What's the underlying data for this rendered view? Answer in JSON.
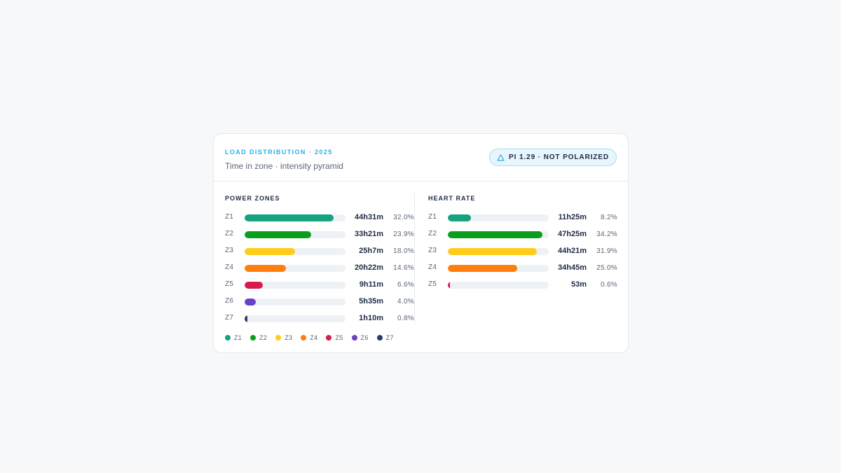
{
  "header": {
    "eyebrow": "LOAD DISTRIBUTION · 2025",
    "subtitle": "Time in zone · intensity pyramid",
    "badge": {
      "label": "PI 1.29 · NOT POLARIZED",
      "icon": "warning-triangle-icon",
      "color": "#2bb0e6"
    }
  },
  "colors": {
    "Z1": "#14a37f",
    "Z2": "#0b9e1d",
    "Z3": "#ffcc1a",
    "Z4": "#ff7f0e",
    "Z5": "#d81b4c",
    "Z6": "#6a3fc9",
    "Z7": "#2f3a66"
  },
  "power": {
    "title": "POWER ZONES",
    "rows": [
      {
        "zone": "Z1",
        "duration": "44h31m",
        "percent": "32.0%",
        "fill": 0.88
      },
      {
        "zone": "Z2",
        "duration": "33h21m",
        "percent": "23.9%",
        "fill": 0.66
      },
      {
        "zone": "Z3",
        "duration": "25h7m",
        "percent": "18.0%",
        "fill": 0.5
      },
      {
        "zone": "Z4",
        "duration": "20h22m",
        "percent": "14.6%",
        "fill": 0.41
      },
      {
        "zone": "Z5",
        "duration": "9h11m",
        "percent": "6.6%",
        "fill": 0.18
      },
      {
        "zone": "Z6",
        "duration": "5h35m",
        "percent": "4.0%",
        "fill": 0.11
      },
      {
        "zone": "Z7",
        "duration": "1h10m",
        "percent": "0.8%",
        "fill": 0.03
      }
    ]
  },
  "heart_rate": {
    "title": "HEART RATE",
    "rows": [
      {
        "zone": "Z1",
        "duration": "11h25m",
        "percent": "8.2%",
        "fill": 0.23
      },
      {
        "zone": "Z2",
        "duration": "47h25m",
        "percent": "34.2%",
        "fill": 0.94
      },
      {
        "zone": "Z3",
        "duration": "44h21m",
        "percent": "31.9%",
        "fill": 0.88
      },
      {
        "zone": "Z4",
        "duration": "34h45m",
        "percent": "25.0%",
        "fill": 0.69
      },
      {
        "zone": "Z5",
        "duration": "53m",
        "percent": "0.6%",
        "fill": 0.02
      }
    ]
  },
  "legend": [
    "Z1",
    "Z2",
    "Z3",
    "Z4",
    "Z5",
    "Z6",
    "Z7"
  ]
}
